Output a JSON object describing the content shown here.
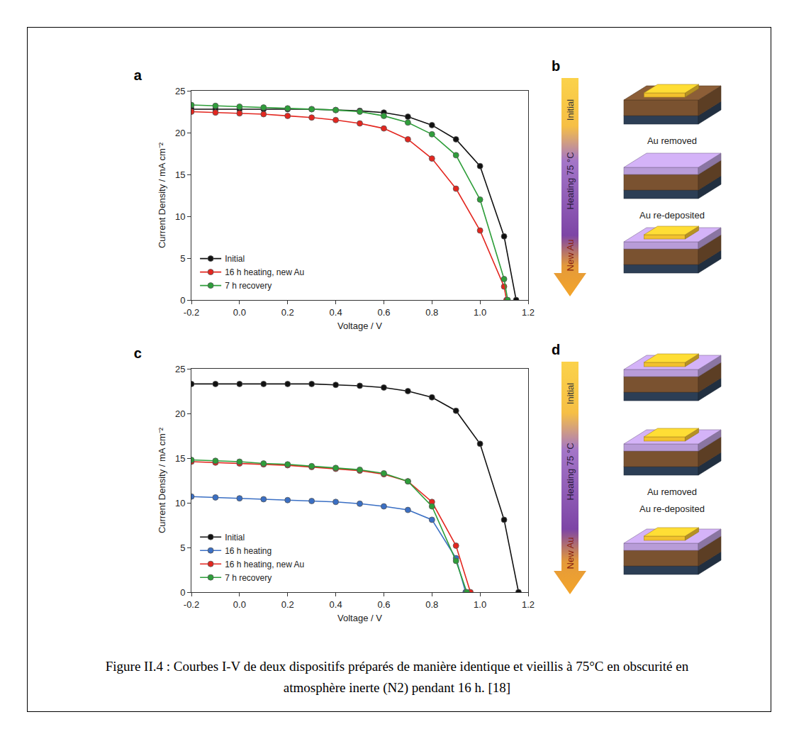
{
  "chart_data": [
    {
      "type": "line",
      "title": "a",
      "x_label": "Voltage / V",
      "y_label": "Current Density / mA cm⁻²",
      "xlim": [
        -0.2,
        1.2
      ],
      "xticks": [
        -0.2,
        {
          "value": 0,
          "label": "0.0"
        },
        0.2,
        0.4,
        0.6,
        0.8,
        {
          "value": 1,
          "label": "1.0"
        },
        1.2
      ],
      "ylim": [
        0,
        25
      ],
      "yticks": [
        0,
        5,
        10,
        15,
        20,
        25
      ],
      "grid": false,
      "legend": "lower left",
      "marker": "circle",
      "series": [
        {
          "name": "Initial",
          "color": "#111111",
          "x": [
            -0.2,
            -0.1,
            0,
            0.1,
            0.2,
            0.3,
            0.4,
            0.5,
            0.6,
            0.7,
            0.8,
            0.9,
            1.0,
            1.1,
            1.15
          ],
          "values": [
            22.8,
            22.8,
            22.8,
            22.8,
            22.8,
            22.8,
            22.7,
            22.6,
            22.4,
            21.9,
            20.9,
            19.2,
            16.0,
            7.6,
            0
          ]
        },
        {
          "name": "16 h heating, new Au",
          "color": "#e3261f",
          "x": [
            -0.2,
            -0.1,
            0,
            0.1,
            0.2,
            0.3,
            0.4,
            0.5,
            0.6,
            0.7,
            0.8,
            0.9,
            1.0,
            1.1,
            1.11
          ],
          "values": [
            22.5,
            22.4,
            22.3,
            22.2,
            22.0,
            21.8,
            21.5,
            21.1,
            20.5,
            19.2,
            16.9,
            13.3,
            8.3,
            1.6,
            0
          ]
        },
        {
          "name": "7 h recovery",
          "color": "#2e9e3a",
          "x": [
            -0.2,
            -0.1,
            0,
            0.1,
            0.2,
            0.3,
            0.4,
            0.5,
            0.6,
            0.7,
            0.8,
            0.9,
            1.0,
            1.1,
            1.115
          ],
          "values": [
            23.3,
            23.2,
            23.1,
            23.0,
            22.9,
            22.8,
            22.7,
            22.5,
            22.0,
            21.2,
            19.8,
            17.3,
            12.0,
            2.5,
            0
          ]
        }
      ]
    },
    {
      "type": "line",
      "title": "c",
      "x_label": "Voltage / V",
      "y_label": "Current Density / mA cm⁻²",
      "xlim": [
        -0.2,
        1.2
      ],
      "xticks": [
        -0.2,
        {
          "value": 0,
          "label": "0.0"
        },
        0.2,
        0.4,
        0.6,
        0.8,
        {
          "value": 1,
          "label": "1.0"
        },
        1.2
      ],
      "ylim": [
        0,
        25
      ],
      "yticks": [
        0,
        5,
        10,
        15,
        20,
        25
      ],
      "grid": false,
      "legend": "lower left",
      "marker": "circle",
      "series": [
        {
          "name": "Initial",
          "color": "#111111",
          "x": [
            -0.2,
            -0.1,
            0,
            0.1,
            0.2,
            0.3,
            0.4,
            0.5,
            0.6,
            0.7,
            0.8,
            0.9,
            1.0,
            1.1,
            1.16
          ],
          "values": [
            23.3,
            23.3,
            23.3,
            23.3,
            23.3,
            23.3,
            23.2,
            23.1,
            22.9,
            22.5,
            21.8,
            20.3,
            16.6,
            8.1,
            0
          ]
        },
        {
          "name": "16 h heating",
          "color": "#3a6fc4",
          "x": [
            -0.2,
            -0.1,
            0,
            0.1,
            0.2,
            0.3,
            0.4,
            0.5,
            0.6,
            0.7,
            0.8,
            0.9,
            0.94
          ],
          "values": [
            10.7,
            10.6,
            10.5,
            10.4,
            10.3,
            10.2,
            10.1,
            9.9,
            9.6,
            9.2,
            8.1,
            3.8,
            0
          ]
        },
        {
          "name": "16 h heating, new Au",
          "color": "#e3261f",
          "x": [
            -0.2,
            -0.1,
            0,
            0.1,
            0.2,
            0.3,
            0.4,
            0.5,
            0.6,
            0.7,
            0.8,
            0.9,
            0.96
          ],
          "values": [
            14.6,
            14.5,
            14.4,
            14.3,
            14.2,
            14.0,
            13.8,
            13.6,
            13.2,
            12.4,
            10.1,
            5.2,
            0
          ]
        },
        {
          "name": "7 h recovery",
          "color": "#2e9e3a",
          "x": [
            -0.2,
            -0.1,
            0,
            0.1,
            0.2,
            0.3,
            0.4,
            0.5,
            0.6,
            0.7,
            0.8,
            0.9,
            0.945
          ],
          "values": [
            14.8,
            14.7,
            14.6,
            14.4,
            14.3,
            14.1,
            13.9,
            13.7,
            13.3,
            12.4,
            9.6,
            3.5,
            0
          ]
        }
      ]
    }
  ],
  "diagrams": [
    {
      "title": "b",
      "arrow_labels": [
        "Initial",
        "Heating 75 °C",
        "New Au"
      ],
      "icon_labels": [
        [
          "Au removed"
        ],
        [
          "Au re-deposited"
        ],
        []
      ]
    },
    {
      "title": "d",
      "arrow_labels": [
        "Initial",
        "Heating 75 °C",
        "New Au"
      ],
      "icon_labels": [
        [],
        [
          "Au removed",
          "Au re-deposited"
        ],
        []
      ]
    }
  ],
  "caption": "Figure II.4 : Courbes I-V de deux dispositifs préparés de manière identique et vieillis à 75°C en obscurité en atmosphère inerte (N2) pendant 16 h. [18]"
}
